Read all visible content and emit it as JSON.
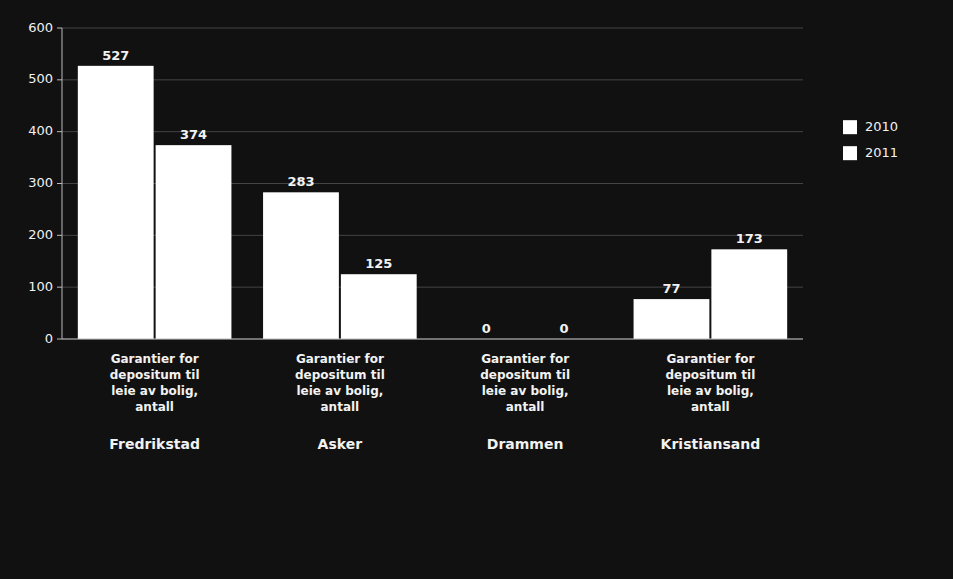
{
  "chart_data": {
    "type": "bar",
    "subtitle": "Garantier for\ndepositum til\nleie av bolig,\nantall",
    "categories": [
      "Fredrikstad",
      "Asker",
      "Drammen",
      "Kristiansand"
    ],
    "series": [
      {
        "name": "2010",
        "color": "#ffffff",
        "values": [
          527,
          283,
          0,
          77
        ]
      },
      {
        "name": "2011",
        "color": "#ffffff",
        "values": [
          374,
          125,
          0,
          173
        ]
      }
    ],
    "ylim": [
      0,
      600
    ],
    "yticks": [
      0,
      100,
      200,
      300,
      400,
      500,
      600
    ],
    "grid": true,
    "legend": "right",
    "data_labels": true
  }
}
